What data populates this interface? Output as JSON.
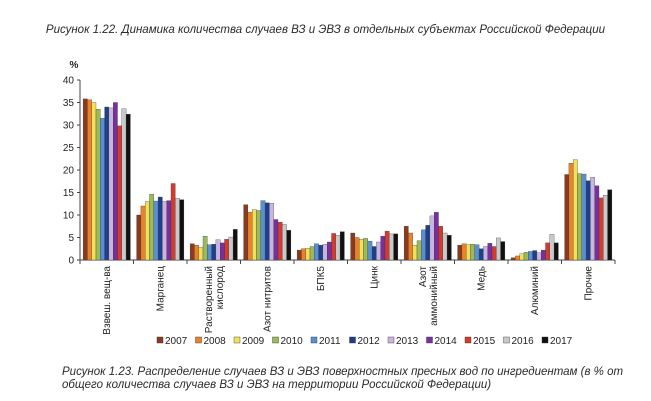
{
  "captions": {
    "top": "Рисунок 1.22. Динамика количества случаев ВЗ и ЭВЗ в отдельных субъектах Российской Федерации",
    "bottom": "Рисунок 1.23. Распределение случаев ВЗ и ЭВЗ поверхностных пресных вод по ингредиентам (в % от общего количества случаев ВЗ и ЭВЗ на территории Российской Федерации)"
  },
  "chart_data": {
    "type": "bar",
    "title": "",
    "ylabel": "%",
    "xlabel": "",
    "ylim": [
      0,
      40
    ],
    "yticks": [
      0,
      5,
      10,
      15,
      20,
      25,
      30,
      35,
      40
    ],
    "grid": false,
    "legend_position": "bottom",
    "categories": [
      "Взвеш. вещ-ва",
      "Марганец",
      "Растворенный кислород",
      "Азот нитритов",
      "БПК5",
      "Цинк",
      "Азот аммонийный",
      "Медь",
      "Алюминий",
      "Прочие"
    ],
    "category_lines": [
      [
        "Взвеш. вещ-ва"
      ],
      [
        "Марганец"
      ],
      [
        "Растворенный",
        "кислород"
      ],
      [
        "Азот нитритов"
      ],
      [
        "БПК5"
      ],
      [
        "Цинк"
      ],
      [
        "Азот",
        "аммонийный"
      ],
      [
        "Медь"
      ],
      [
        "Алюминий"
      ],
      [
        "Прочие"
      ]
    ],
    "series": [
      {
        "name": "2007",
        "color": "#8b3a1e",
        "values": [
          35.8,
          10.0,
          3.6,
          12.3,
          2.2,
          6.0,
          7.5,
          3.3,
          0.5,
          19.0
        ]
      },
      {
        "name": "2008",
        "color": "#e8832a",
        "values": [
          35.6,
          12.0,
          3.3,
          10.6,
          2.5,
          5.0,
          6.0,
          3.6,
          0.9,
          21.5
        ]
      },
      {
        "name": "2009",
        "color": "#f3df5a",
        "values": [
          35.0,
          13.0,
          2.8,
          11.2,
          2.6,
          4.6,
          3.3,
          3.4,
          1.4,
          22.3
        ]
      },
      {
        "name": "2010",
        "color": "#9bbb59",
        "values": [
          33.5,
          14.6,
          5.3,
          11.0,
          3.0,
          4.8,
          4.3,
          3.5,
          1.7,
          19.2
        ]
      },
      {
        "name": "2011",
        "color": "#5b8fd4",
        "values": [
          31.5,
          13.1,
          3.4,
          13.2,
          3.6,
          4.2,
          6.7,
          3.4,
          1.9,
          19.1
        ]
      },
      {
        "name": "2012",
        "color": "#1f3f8a",
        "values": [
          34.0,
          14.0,
          3.5,
          12.7,
          3.3,
          3.0,
          7.7,
          2.5,
          2.1,
          17.6
        ]
      },
      {
        "name": "2013",
        "color": "#c9b6e0",
        "values": [
          33.8,
          13.0,
          4.5,
          12.6,
          3.5,
          4.0,
          9.8,
          3.0,
          1.6,
          18.4
        ]
      },
      {
        "name": "2014",
        "color": "#7a2f9e",
        "values": [
          35.0,
          13.2,
          3.8,
          9.0,
          4.0,
          5.3,
          10.6,
          3.7,
          2.2,
          16.5
        ]
      },
      {
        "name": "2015",
        "color": "#d33b2f",
        "values": [
          29.8,
          17.0,
          4.6,
          8.4,
          5.9,
          6.4,
          7.5,
          3.0,
          3.8,
          13.8
        ]
      },
      {
        "name": "2016",
        "color": "#c9c9c9",
        "values": [
          33.6,
          13.7,
          5.1,
          7.9,
          5.5,
          5.8,
          6.0,
          4.9,
          5.7,
          14.4
        ]
      },
      {
        "name": "2017",
        "color": "#111111",
        "values": [
          32.4,
          13.4,
          6.8,
          6.6,
          6.3,
          5.8,
          5.5,
          4.1,
          3.8,
          15.6
        ]
      }
    ]
  }
}
